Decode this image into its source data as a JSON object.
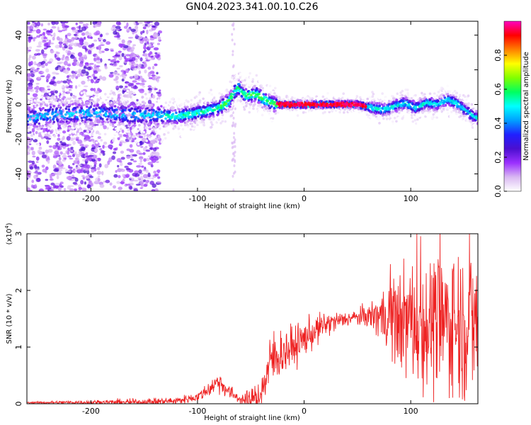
{
  "chart_data": [
    {
      "type": "heatmap",
      "title": "GN04.2023.341.00.10.C26",
      "xlabel": "Height of straight line (km)",
      "ylabel": "Frequency (Hz)",
      "xlim": [
        -260,
        163
      ],
      "ylim": [
        -50,
        48
      ],
      "xticks": [
        -200,
        -100,
        0,
        100
      ],
      "yticks": [
        -40,
        -20,
        0,
        20,
        40
      ],
      "colorbar": {
        "label": "Normalized spectral amplitude",
        "range": [
          0,
          1
        ],
        "ticks": [
          0.0,
          0.2,
          0.4,
          0.6,
          0.8
        ],
        "tick_labels": [
          "0.0",
          "0.2",
          "0.4",
          "0.6",
          "0.8"
        ],
        "colormap": [
          "#ffffff",
          "#d9b8f2",
          "#9b30ff",
          "#4b0fd0",
          "#2020ff",
          "#00a0ff",
          "#00ffff",
          "#00ff60",
          "#80ff00",
          "#ffff00",
          "#ff8000",
          "#ff0000",
          "#ff00c0"
        ]
      },
      "ridge": {
        "description_points_x": [
          -260,
          -240,
          -200,
          -160,
          -140,
          -120,
          -100,
          -80,
          -70,
          -62,
          -55,
          -45,
          -35,
          -25,
          -10,
          0,
          20,
          50,
          65,
          75,
          85,
          95,
          105,
          115,
          125,
          135,
          145,
          155,
          163
        ],
        "description_points_y": [
          -8,
          -6,
          -5,
          -6,
          -6,
          -7,
          -5,
          -2,
          2,
          10,
          5,
          6,
          2,
          0,
          0,
          0,
          0,
          0,
          -2,
          -3,
          -1,
          1,
          -2,
          1,
          0,
          3,
          0,
          -5,
          -8
        ]
      }
    },
    {
      "type": "line",
      "xlabel": "Height of straight line (km)",
      "ylabel": "SNR (10 * v/v)",
      "multiplier_label": "(x10",
      "multiplier_exp": "4",
      "multiplier_close": ")",
      "xlim": [
        -260,
        163
      ],
      "ylim": [
        0,
        3
      ],
      "xticks": [
        -200,
        -100,
        0,
        100
      ],
      "yticks": [
        0,
        1,
        2,
        3
      ],
      "color": "#ee2222",
      "envelope_x": [
        -260,
        -150,
        -120,
        -100,
        -90,
        -80,
        -70,
        -60,
        -50,
        -40,
        -35,
        -30,
        -20,
        -10,
        0,
        20,
        40,
        60,
        80,
        100,
        120,
        140,
        163
      ],
      "envelope_y": [
        0.02,
        0.03,
        0.05,
        0.12,
        0.25,
        0.4,
        0.2,
        0.08,
        0.05,
        0.2,
        0.5,
        0.8,
        0.9,
        1.0,
        1.15,
        1.4,
        1.5,
        1.55,
        1.55,
        1.45,
        1.4,
        1.45,
        1.4
      ],
      "noise_x": [
        -260,
        -100,
        -80,
        -60,
        -40,
        -30,
        -20,
        0,
        40,
        60,
        80,
        100,
        120,
        140,
        163
      ],
      "noise_y": [
        0.01,
        0.05,
        0.12,
        0.05,
        0.2,
        0.35,
        0.25,
        0.2,
        0.08,
        0.12,
        0.4,
        0.7,
        0.75,
        0.85,
        0.85
      ]
    }
  ]
}
